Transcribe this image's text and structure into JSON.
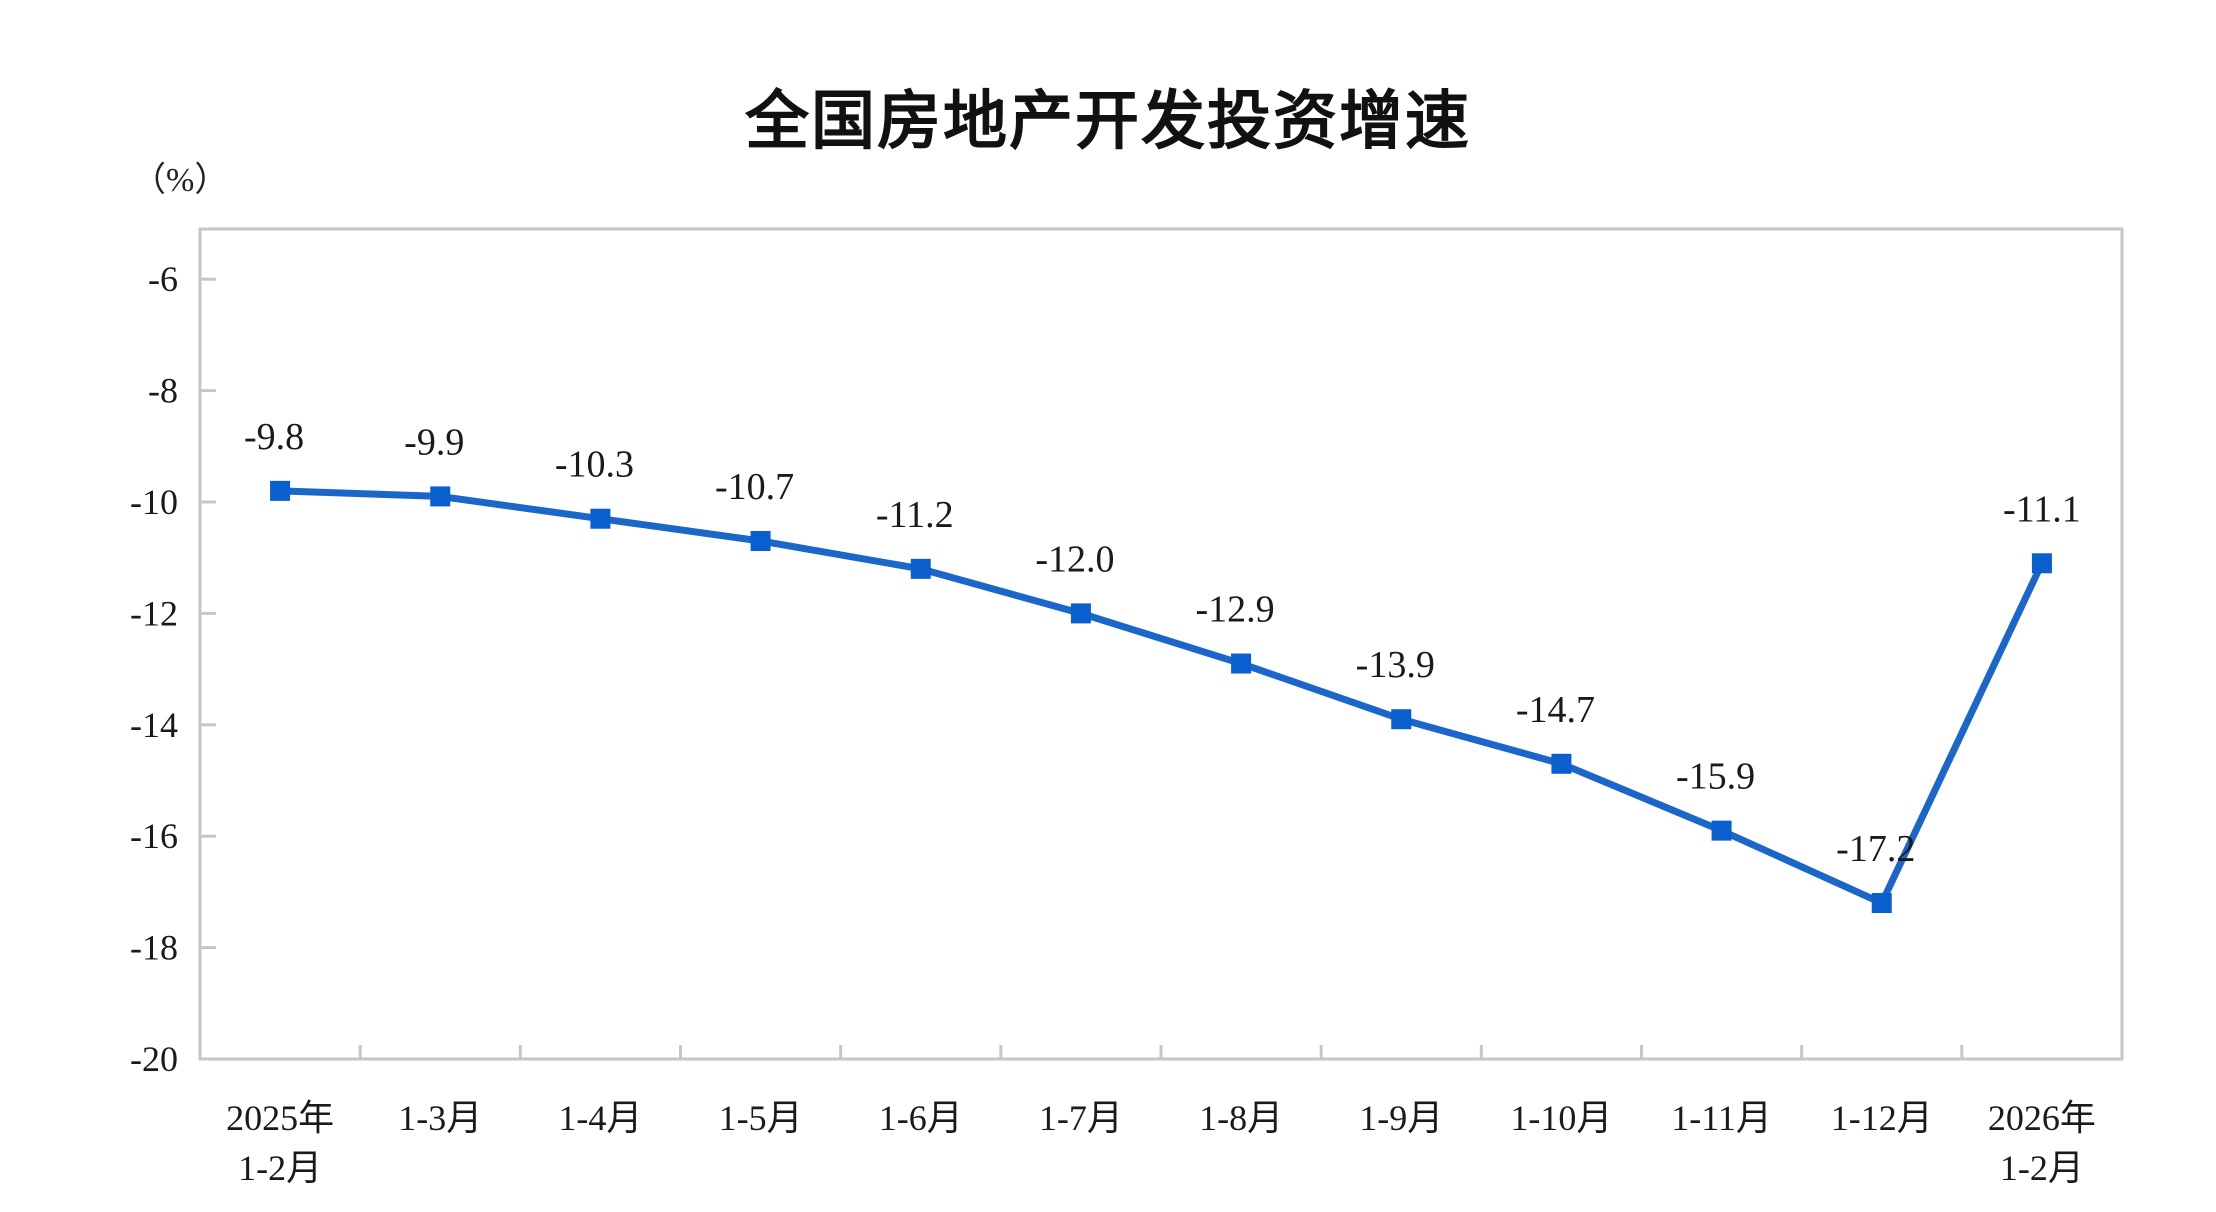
{
  "title": "全国房地产开发投资增速",
  "unit_label": "（%）",
  "colors": {
    "line": "#1a66c9",
    "marker": "#0a5fcf",
    "axis": "#c6c6c6",
    "text": "#1a1a1a"
  },
  "chart_data": {
    "type": "line",
    "title": "全国房地产开发投资增速",
    "xlabel": "",
    "ylabel": "（%）",
    "ylim": [
      -20,
      -5
    ],
    "yticks": [
      -6,
      -8,
      -10,
      -12,
      -14,
      -16,
      -18,
      -20
    ],
    "grid": false,
    "legend": null,
    "categories": [
      [
        "2025年",
        "1-2月"
      ],
      [
        "1-3月"
      ],
      [
        "1-4月"
      ],
      [
        "1-5月"
      ],
      [
        "1-6月"
      ],
      [
        "1-7月"
      ],
      [
        "1-8月"
      ],
      [
        "1-9月"
      ],
      [
        "1-10月"
      ],
      [
        "1-11月"
      ],
      [
        "1-12月"
      ],
      [
        "2026年",
        "1-2月"
      ]
    ],
    "series": [
      {
        "name": "全国房地产开发投资增速",
        "values": [
          -9.8,
          -9.9,
          -10.3,
          -10.7,
          -11.2,
          -12.0,
          -12.9,
          -13.9,
          -14.7,
          -15.9,
          -17.2,
          -11.1
        ],
        "labels": [
          "-9.8",
          "-9.9",
          "-10.3",
          "-10.7",
          "-11.2",
          "-12.0",
          "-12.9",
          "-13.9",
          "-14.7",
          "-15.9",
          "-17.2",
          "-11.1"
        ],
        "marker": "square"
      }
    ]
  }
}
